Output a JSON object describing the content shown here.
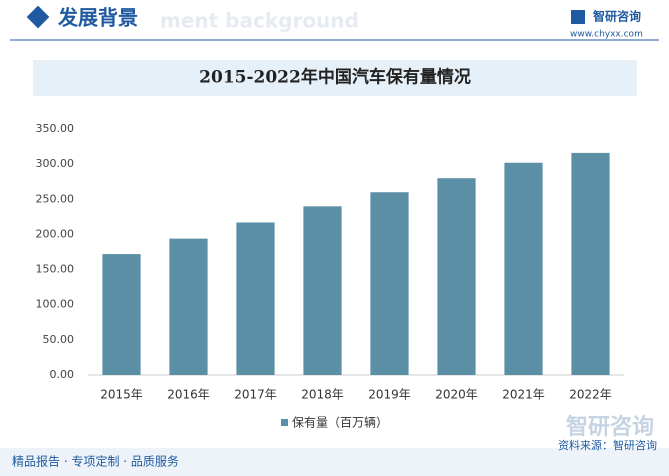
{
  "header": {
    "title": "发展背景",
    "watermark": "ment background",
    "brand": "智研咨询",
    "url": "www.chyxx.com"
  },
  "chart_data": {
    "type": "bar",
    "title": "2015-2022年中国汽车保有量情况",
    "categories": [
      "2015年",
      "2016年",
      "2017年",
      "2018年",
      "2019年",
      "2020年",
      "2021年",
      "2022年"
    ],
    "series": [
      {
        "name": "保有量（百万辆）",
        "color": "#5b8fa6",
        "values": [
          172,
          194,
          217,
          240,
          260,
          280,
          302,
          316
        ]
      }
    ],
    "ylim": [
      0,
      350
    ],
    "yticks": [
      {
        "value": 0,
        "label": "0.00"
      },
      {
        "value": 50,
        "label": "50.00"
      },
      {
        "value": 100,
        "label": "100.00"
      },
      {
        "value": 150,
        "label": "150.00"
      },
      {
        "value": 200,
        "label": "200.00"
      },
      {
        "value": 250,
        "label": "250.00"
      },
      {
        "value": 300,
        "label": "300.00"
      },
      {
        "value": 350,
        "label": "350.00"
      }
    ],
    "grid": false
  },
  "footer": {
    "slogan": "精品报告 · 专项定制 · 品质服务",
    "source": "资料来源：智研咨询",
    "brand": "智研咨询"
  }
}
